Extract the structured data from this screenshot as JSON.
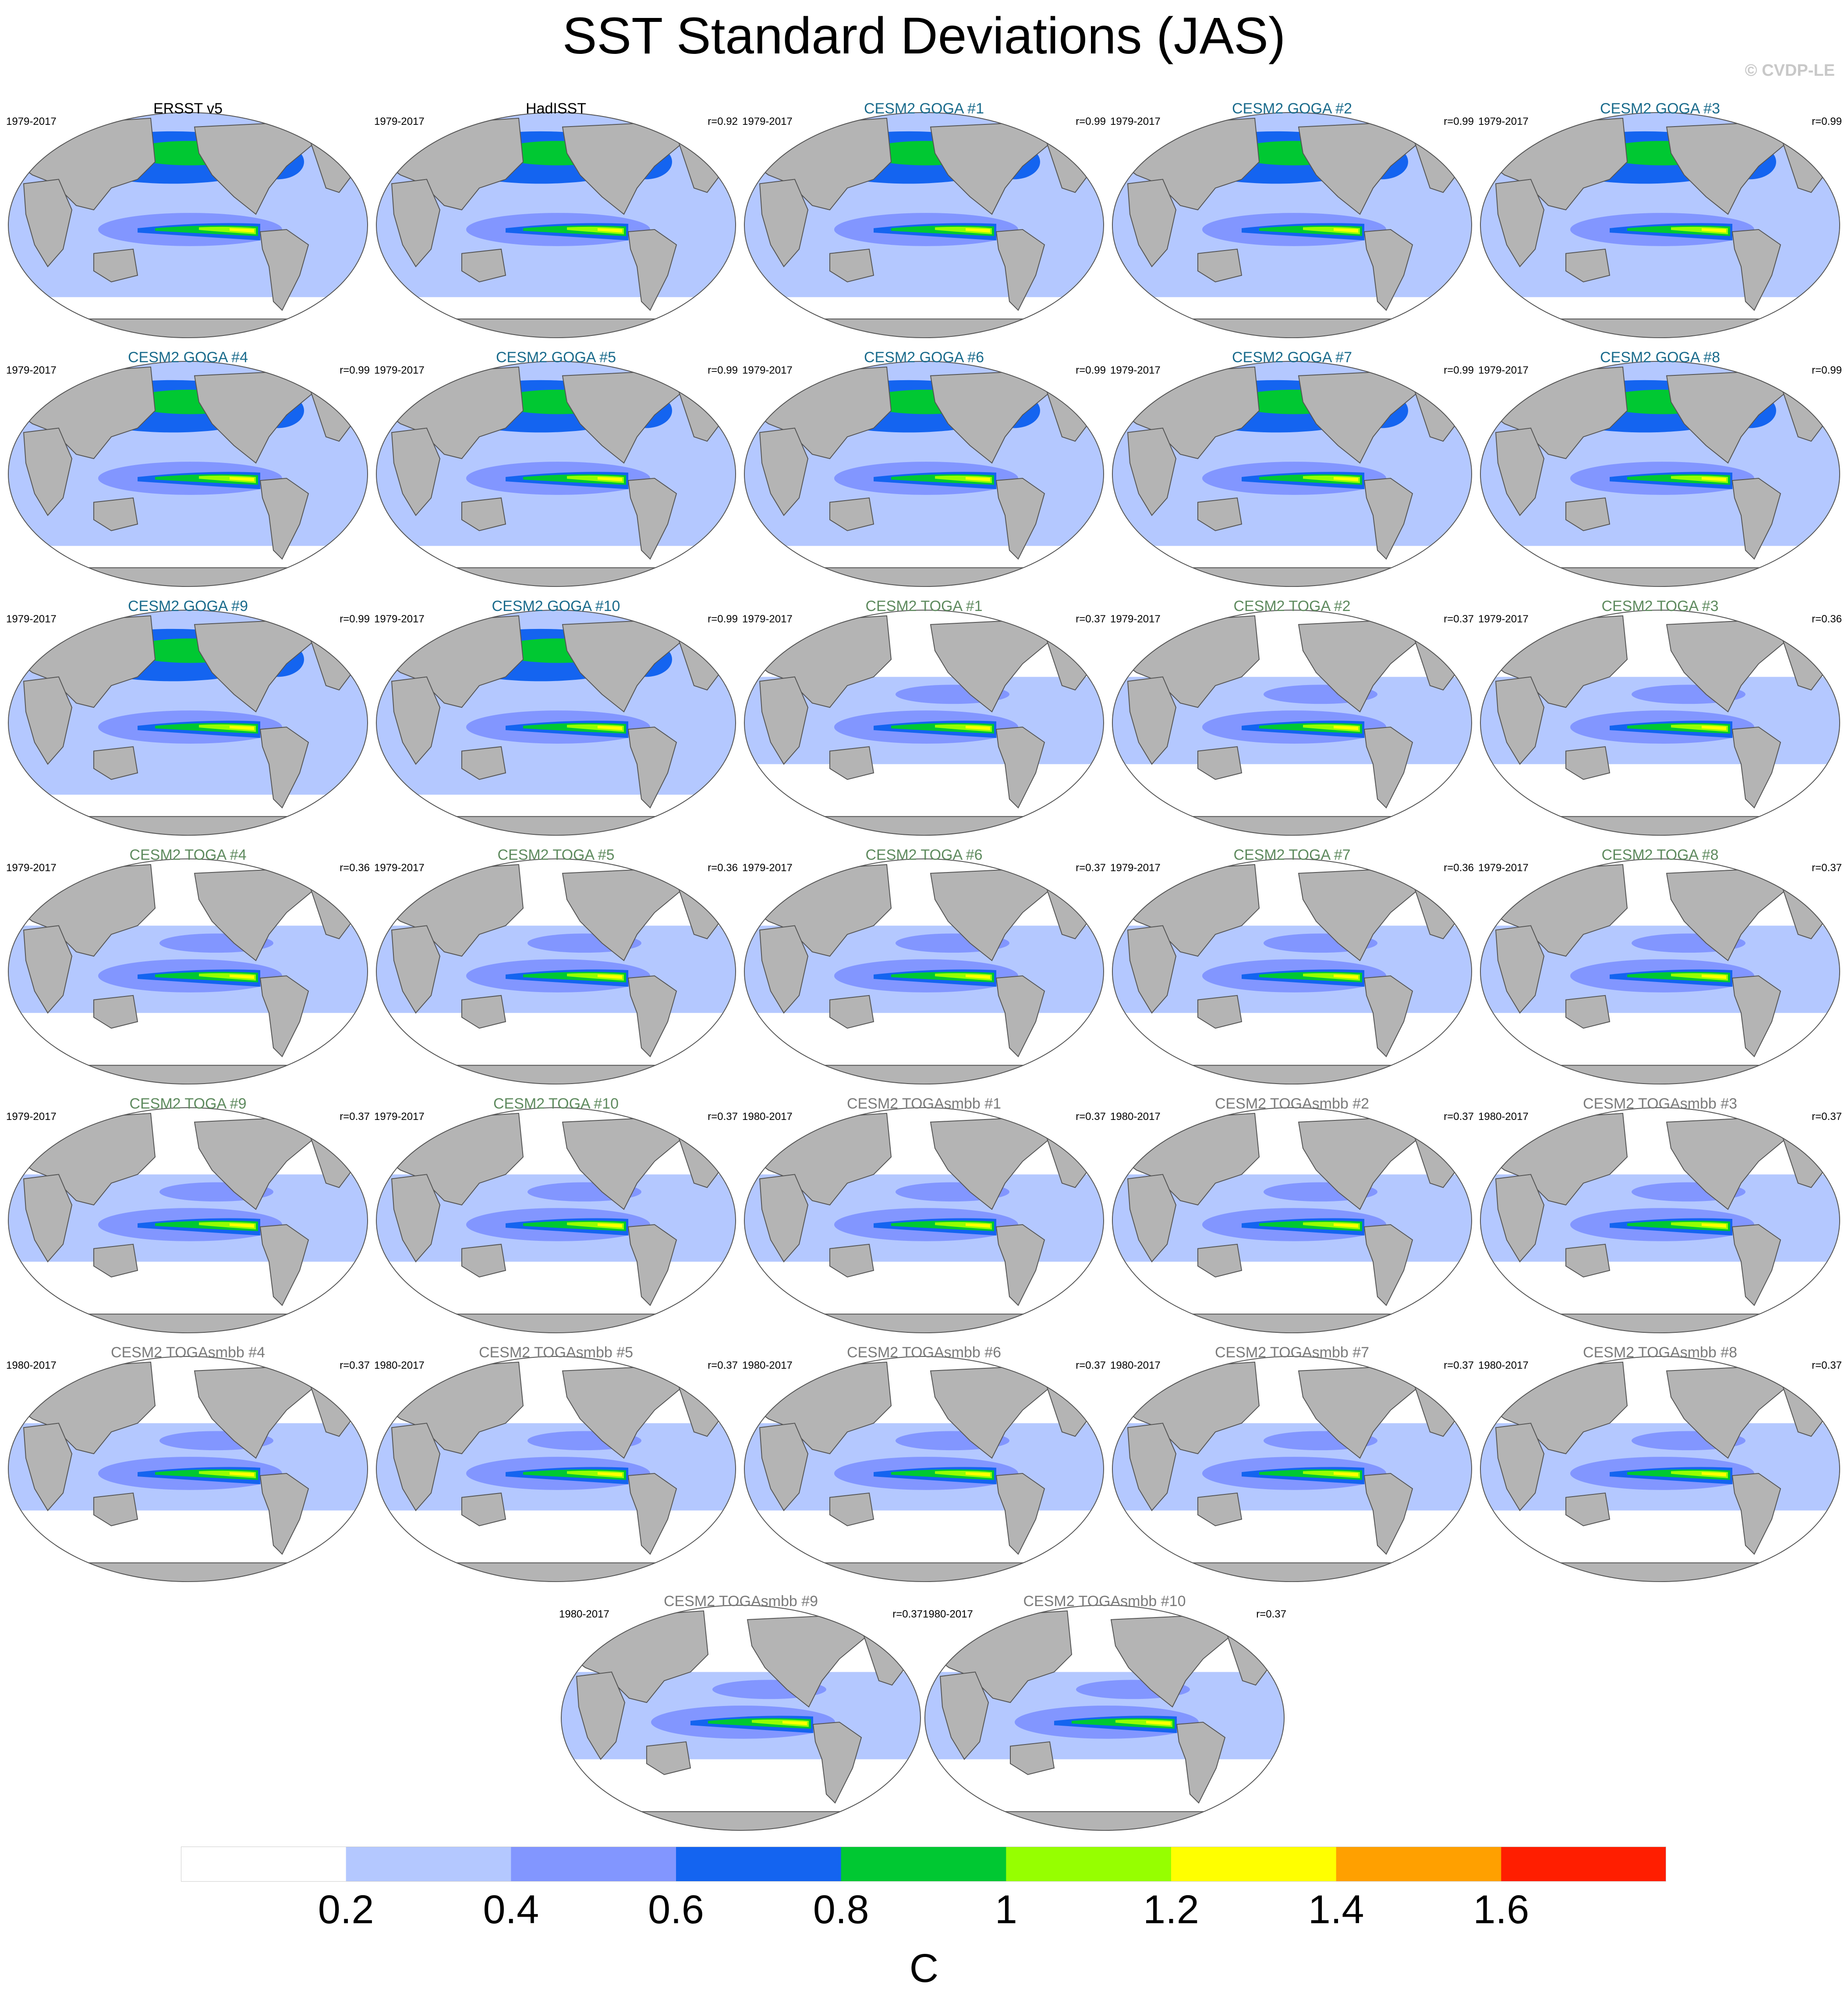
{
  "title": "SST Standard Deviations (JAS)",
  "credit": "© CVDP-LE",
  "colors": {
    "obs_title": "#000000",
    "goga_title": "#1a6b8c",
    "toga_title": "#5e8a5e",
    "togasmbb_title": "#7a7a7a",
    "land": "#b4b4b4",
    "coast": "#555555"
  },
  "panels": [
    {
      "title": "ERSST v5",
      "years": "1979-2017",
      "r": "",
      "group": "obs",
      "coverage": "global"
    },
    {
      "title": "HadISST",
      "years": "1979-2017",
      "r": "r=0.92",
      "group": "obs",
      "coverage": "global"
    },
    {
      "title": "CESM2 GOGA #1",
      "years": "1979-2017",
      "r": "r=0.99",
      "group": "goga",
      "coverage": "global"
    },
    {
      "title": "CESM2 GOGA #2",
      "years": "1979-2017",
      "r": "r=0.99",
      "group": "goga",
      "coverage": "global"
    },
    {
      "title": "CESM2 GOGA #3",
      "years": "1979-2017",
      "r": "r=0.99",
      "group": "goga",
      "coverage": "global"
    },
    {
      "title": "CESM2 GOGA #4",
      "years": "1979-2017",
      "r": "r=0.99",
      "group": "goga",
      "coverage": "global"
    },
    {
      "title": "CESM2 GOGA #5",
      "years": "1979-2017",
      "r": "r=0.99",
      "group": "goga",
      "coverage": "global"
    },
    {
      "title": "CESM2 GOGA #6",
      "years": "1979-2017",
      "r": "r=0.99",
      "group": "goga",
      "coverage": "global"
    },
    {
      "title": "CESM2 GOGA #7",
      "years": "1979-2017",
      "r": "r=0.99",
      "group": "goga",
      "coverage": "global"
    },
    {
      "title": "CESM2 GOGA #8",
      "years": "1979-2017",
      "r": "r=0.99",
      "group": "goga",
      "coverage": "global"
    },
    {
      "title": "CESM2 GOGA #9",
      "years": "1979-2017",
      "r": "r=0.99",
      "group": "goga",
      "coverage": "global"
    },
    {
      "title": "CESM2 GOGA #10",
      "years": "1979-2017",
      "r": "r=0.99",
      "group": "goga",
      "coverage": "global"
    },
    {
      "title": "CESM2 TOGA #1",
      "years": "1979-2017",
      "r": "r=0.37",
      "group": "toga",
      "coverage": "tropical"
    },
    {
      "title": "CESM2 TOGA #2",
      "years": "1979-2017",
      "r": "r=0.37",
      "group": "toga",
      "coverage": "tropical"
    },
    {
      "title": "CESM2 TOGA #3",
      "years": "1979-2017",
      "r": "r=0.36",
      "group": "toga",
      "coverage": "tropical"
    },
    {
      "title": "CESM2 TOGA #4",
      "years": "1979-2017",
      "r": "r=0.36",
      "group": "toga",
      "coverage": "tropical"
    },
    {
      "title": "CESM2 TOGA #5",
      "years": "1979-2017",
      "r": "r=0.36",
      "group": "toga",
      "coverage": "tropical"
    },
    {
      "title": "CESM2 TOGA #6",
      "years": "1979-2017",
      "r": "r=0.37",
      "group": "toga",
      "coverage": "tropical"
    },
    {
      "title": "CESM2 TOGA #7",
      "years": "1979-2017",
      "r": "r=0.36",
      "group": "toga",
      "coverage": "tropical"
    },
    {
      "title": "CESM2 TOGA #8",
      "years": "1979-2017",
      "r": "r=0.37",
      "group": "toga",
      "coverage": "tropical"
    },
    {
      "title": "CESM2 TOGA #9",
      "years": "1979-2017",
      "r": "r=0.37",
      "group": "toga",
      "coverage": "tropical"
    },
    {
      "title": "CESM2 TOGA #10",
      "years": "1979-2017",
      "r": "r=0.37",
      "group": "toga",
      "coverage": "tropical"
    },
    {
      "title": "CESM2 TOGAsmbb #1",
      "years": "1980-2017",
      "r": "r=0.37",
      "group": "togasmbb",
      "coverage": "tropical"
    },
    {
      "title": "CESM2 TOGAsmbb #2",
      "years": "1980-2017",
      "r": "r=0.37",
      "group": "togasmbb",
      "coverage": "tropical"
    },
    {
      "title": "CESM2 TOGAsmbb #3",
      "years": "1980-2017",
      "r": "r=0.37",
      "group": "togasmbb",
      "coverage": "tropical"
    },
    {
      "title": "CESM2 TOGAsmbb #4",
      "years": "1980-2017",
      "r": "r=0.37",
      "group": "togasmbb",
      "coverage": "tropical"
    },
    {
      "title": "CESM2 TOGAsmbb #5",
      "years": "1980-2017",
      "r": "r=0.37",
      "group": "togasmbb",
      "coverage": "tropical"
    },
    {
      "title": "CESM2 TOGAsmbb #6",
      "years": "1980-2017",
      "r": "r=0.37",
      "group": "togasmbb",
      "coverage": "tropical"
    },
    {
      "title": "CESM2 TOGAsmbb #7",
      "years": "1980-2017",
      "r": "r=0.37",
      "group": "togasmbb",
      "coverage": "tropical"
    },
    {
      "title": "CESM2 TOGAsmbb #8",
      "years": "1980-2017",
      "r": "r=0.37",
      "group": "togasmbb",
      "coverage": "tropical"
    },
    {
      "title": "CESM2 TOGAsmbb #9",
      "years": "1980-2017",
      "r": "r=0.37",
      "group": "togasmbb",
      "coverage": "tropical"
    },
    {
      "title": "CESM2 TOGAsmbb #10",
      "years": "1980-2017",
      "r": "r=0.37",
      "group": "togasmbb",
      "coverage": "tropical"
    }
  ],
  "colorbar": {
    "colors": [
      "#ffffff",
      "#b4c8ff",
      "#8296ff",
      "#1464f0",
      "#00c832",
      "#96ff00",
      "#ffff00",
      "#ffa000",
      "#ff1e00"
    ],
    "labels": [
      "0.2",
      "0.4",
      "0.6",
      "0.8",
      "1",
      "1.2",
      "1.4",
      "1.6"
    ],
    "units": "C"
  },
  "chart_data": {
    "type": "heatmap",
    "title": "SST Standard Deviations (JAS)",
    "units": "C",
    "contour_levels": [
      0.2,
      0.4,
      0.6,
      0.8,
      1.0,
      1.2,
      1.4,
      1.6
    ],
    "maps": [
      {
        "name": "ERSST v5",
        "years": "1979-2017",
        "r": null
      },
      {
        "name": "HadISST",
        "years": "1979-2017",
        "r": 0.92
      },
      {
        "name": "CESM2 GOGA #1",
        "years": "1979-2017",
        "r": 0.99
      },
      {
        "name": "CESM2 GOGA #2",
        "years": "1979-2017",
        "r": 0.99
      },
      {
        "name": "CESM2 GOGA #3",
        "years": "1979-2017",
        "r": 0.99
      },
      {
        "name": "CESM2 GOGA #4",
        "years": "1979-2017",
        "r": 0.99
      },
      {
        "name": "CESM2 GOGA #5",
        "years": "1979-2017",
        "r": 0.99
      },
      {
        "name": "CESM2 GOGA #6",
        "years": "1979-2017",
        "r": 0.99
      },
      {
        "name": "CESM2 GOGA #7",
        "years": "1979-2017",
        "r": 0.99
      },
      {
        "name": "CESM2 GOGA #8",
        "years": "1979-2017",
        "r": 0.99
      },
      {
        "name": "CESM2 GOGA #9",
        "years": "1979-2017",
        "r": 0.99
      },
      {
        "name": "CESM2 GOGA #10",
        "years": "1979-2017",
        "r": 0.99
      },
      {
        "name": "CESM2 TOGA #1",
        "years": "1979-2017",
        "r": 0.37
      },
      {
        "name": "CESM2 TOGA #2",
        "years": "1979-2017",
        "r": 0.37
      },
      {
        "name": "CESM2 TOGA #3",
        "years": "1979-2017",
        "r": 0.36
      },
      {
        "name": "CESM2 TOGA #4",
        "years": "1979-2017",
        "r": 0.36
      },
      {
        "name": "CESM2 TOGA #5",
        "years": "1979-2017",
        "r": 0.36
      },
      {
        "name": "CESM2 TOGA #6",
        "years": "1979-2017",
        "r": 0.37
      },
      {
        "name": "CESM2 TOGA #7",
        "years": "1979-2017",
        "r": 0.36
      },
      {
        "name": "CESM2 TOGA #8",
        "years": "1979-2017",
        "r": 0.37
      },
      {
        "name": "CESM2 TOGA #9",
        "years": "1979-2017",
        "r": 0.37
      },
      {
        "name": "CESM2 TOGA #10",
        "years": "1979-2017",
        "r": 0.37
      },
      {
        "name": "CESM2 TOGAsmbb #1",
        "years": "1980-2017",
        "r": 0.37
      },
      {
        "name": "CESM2 TOGAsmbb #2",
        "years": "1980-2017",
        "r": 0.37
      },
      {
        "name": "CESM2 TOGAsmbb #3",
        "years": "1980-2017",
        "r": 0.37
      },
      {
        "name": "CESM2 TOGAsmbb #4",
        "years": "1980-2017",
        "r": 0.37
      },
      {
        "name": "CESM2 TOGAsmbb #5",
        "years": "1980-2017",
        "r": 0.37
      },
      {
        "name": "CESM2 TOGAsmbb #6",
        "years": "1980-2017",
        "r": 0.37
      },
      {
        "name": "CESM2 TOGAsmbb #7",
        "years": "1980-2017",
        "r": 0.37
      },
      {
        "name": "CESM2 TOGAsmbb #8",
        "years": "1980-2017",
        "r": 0.37
      },
      {
        "name": "CESM2 TOGAsmbb #9",
        "years": "1980-2017",
        "r": 0.37
      },
      {
        "name": "CESM2 TOGAsmbb #10",
        "years": "1980-2017",
        "r": 0.37
      }
    ]
  }
}
